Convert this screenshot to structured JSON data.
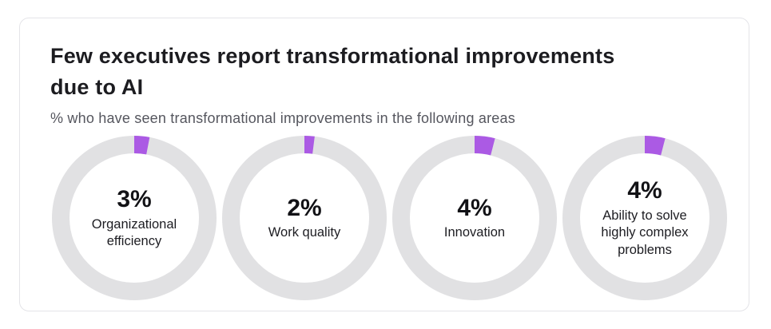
{
  "card": {
    "title": "Few executives report transformational improvements due to AI",
    "title_lines": [
      "Few executives report transformational improvements",
      "due to AI"
    ],
    "subtitle": "% who have seen transformational improvements in the following areas"
  },
  "colors": {
    "accent": "#ab5ae4",
    "ring_track": "#e1e1e3",
    "title_text": "#1c1c20",
    "subtitle_text": "#55565e"
  },
  "chart_data": {
    "type": "pie",
    "variant": "donut-gauge-set",
    "title": "Few executives report transformational improvements due to AI",
    "subtitle": "% who have seen transformational improvements in the following areas",
    "unit": "%",
    "value_range": [
      0,
      100
    ],
    "arc_start": "top",
    "arc_direction": "clockwise",
    "items": [
      {
        "value": 3,
        "display": "3%",
        "label": "Organizational efficiency"
      },
      {
        "value": 2,
        "display": "2%",
        "label": "Work quality"
      },
      {
        "value": 4,
        "display": "4%",
        "label": "Innovation"
      },
      {
        "value": 4,
        "display": "4%",
        "label": "Ability to solve highly complex problems"
      }
    ]
  }
}
